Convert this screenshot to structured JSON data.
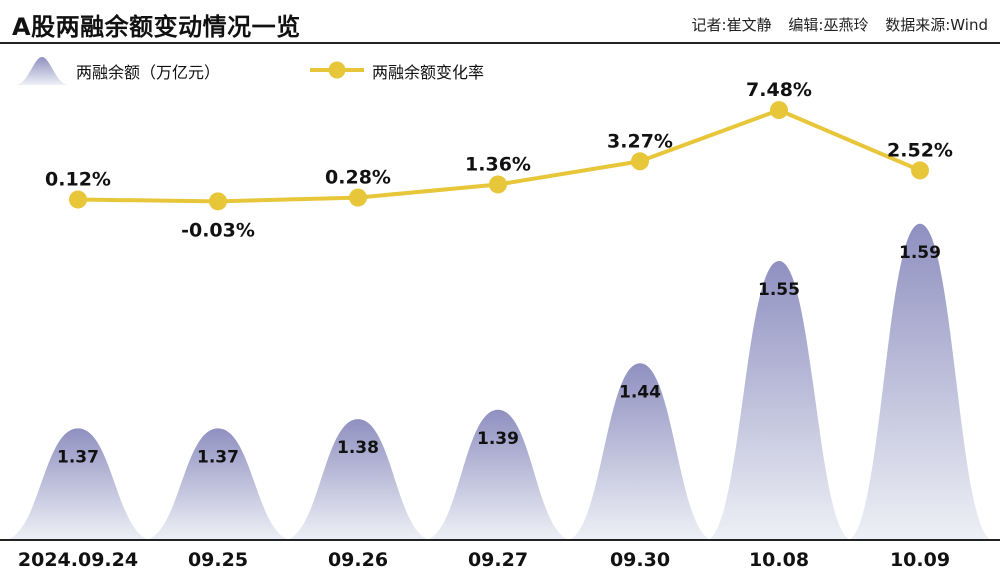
{
  "header": {
    "title": "A股两融余额变动情况一览",
    "reporter": "记者:崔文静",
    "editor": "编辑:巫燕玲",
    "source": "数据来源:Wind"
  },
  "legend": {
    "balance": "两融余额（万亿元）",
    "rate": "两融余额变化率"
  },
  "colors": {
    "peak_top": "#8f90c0",
    "peak_bottom": "#eef0f6",
    "line": "#e8c63a",
    "marker": "#e8c63a"
  },
  "chart_data": {
    "type": "bar+line",
    "categories": [
      "2024.09.24",
      "09.25",
      "09.26",
      "09.27",
      "09.30",
      "10.08",
      "10.09"
    ],
    "series": [
      {
        "name": "两融余额（万亿元）",
        "kind": "peak",
        "values": [
          1.37,
          1.37,
          1.38,
          1.39,
          1.44,
          1.55,
          1.59
        ],
        "labels": [
          "1.37",
          "1.37",
          "1.38",
          "1.39",
          "1.44",
          "1.55",
          "1.59"
        ]
      },
      {
        "name": "两融余额变化率",
        "kind": "line",
        "values": [
          0.12,
          -0.03,
          0.28,
          1.36,
          3.27,
          7.48,
          2.52
        ],
        "labels": [
          "0.12%",
          "-0.03%",
          "0.28%",
          "1.36%",
          "3.27%",
          "7.48%",
          "2.52%"
        ]
      }
    ]
  }
}
